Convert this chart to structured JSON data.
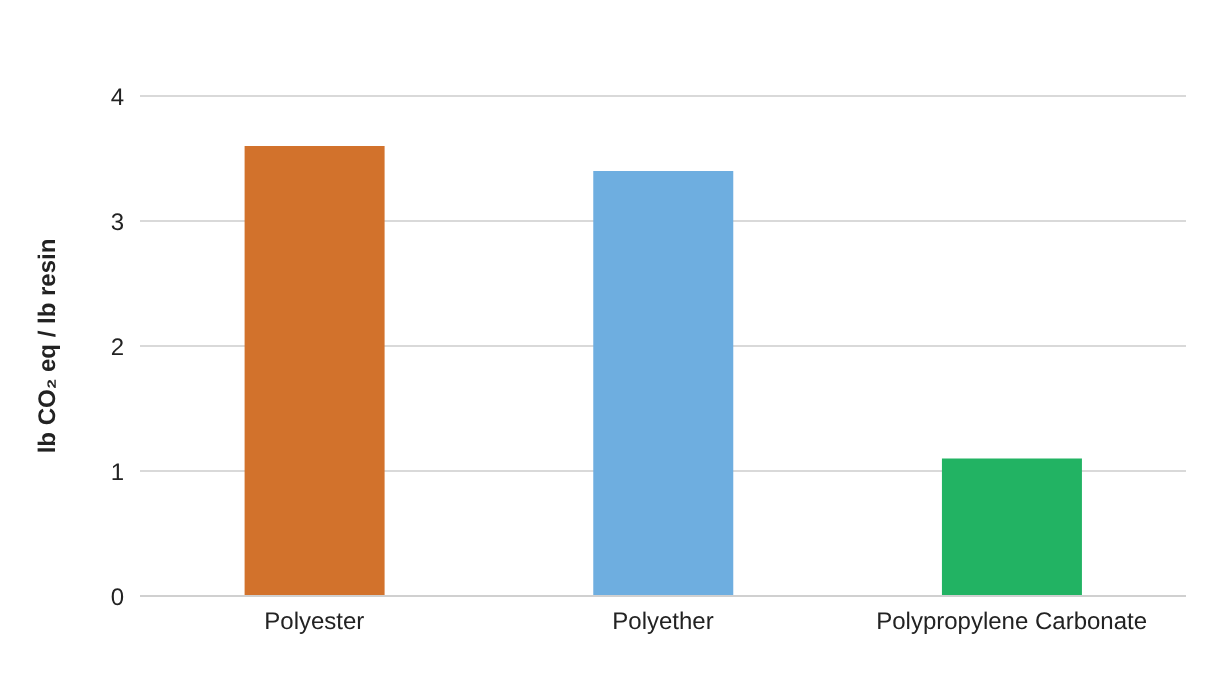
{
  "chart_data": {
    "type": "bar",
    "ylabel": "lb CO₂ eq / lb resin",
    "categories": [
      "Polyester",
      "Polyether",
      "Polypropylene Carbonate"
    ],
    "values": [
      3.6,
      3.4,
      1.1
    ],
    "colors": [
      "#d2722c",
      "#6eaee0",
      "#22b363"
    ],
    "ylim": [
      0,
      4
    ],
    "yticks": [
      0,
      1,
      2,
      3,
      4
    ],
    "grid": "y"
  }
}
